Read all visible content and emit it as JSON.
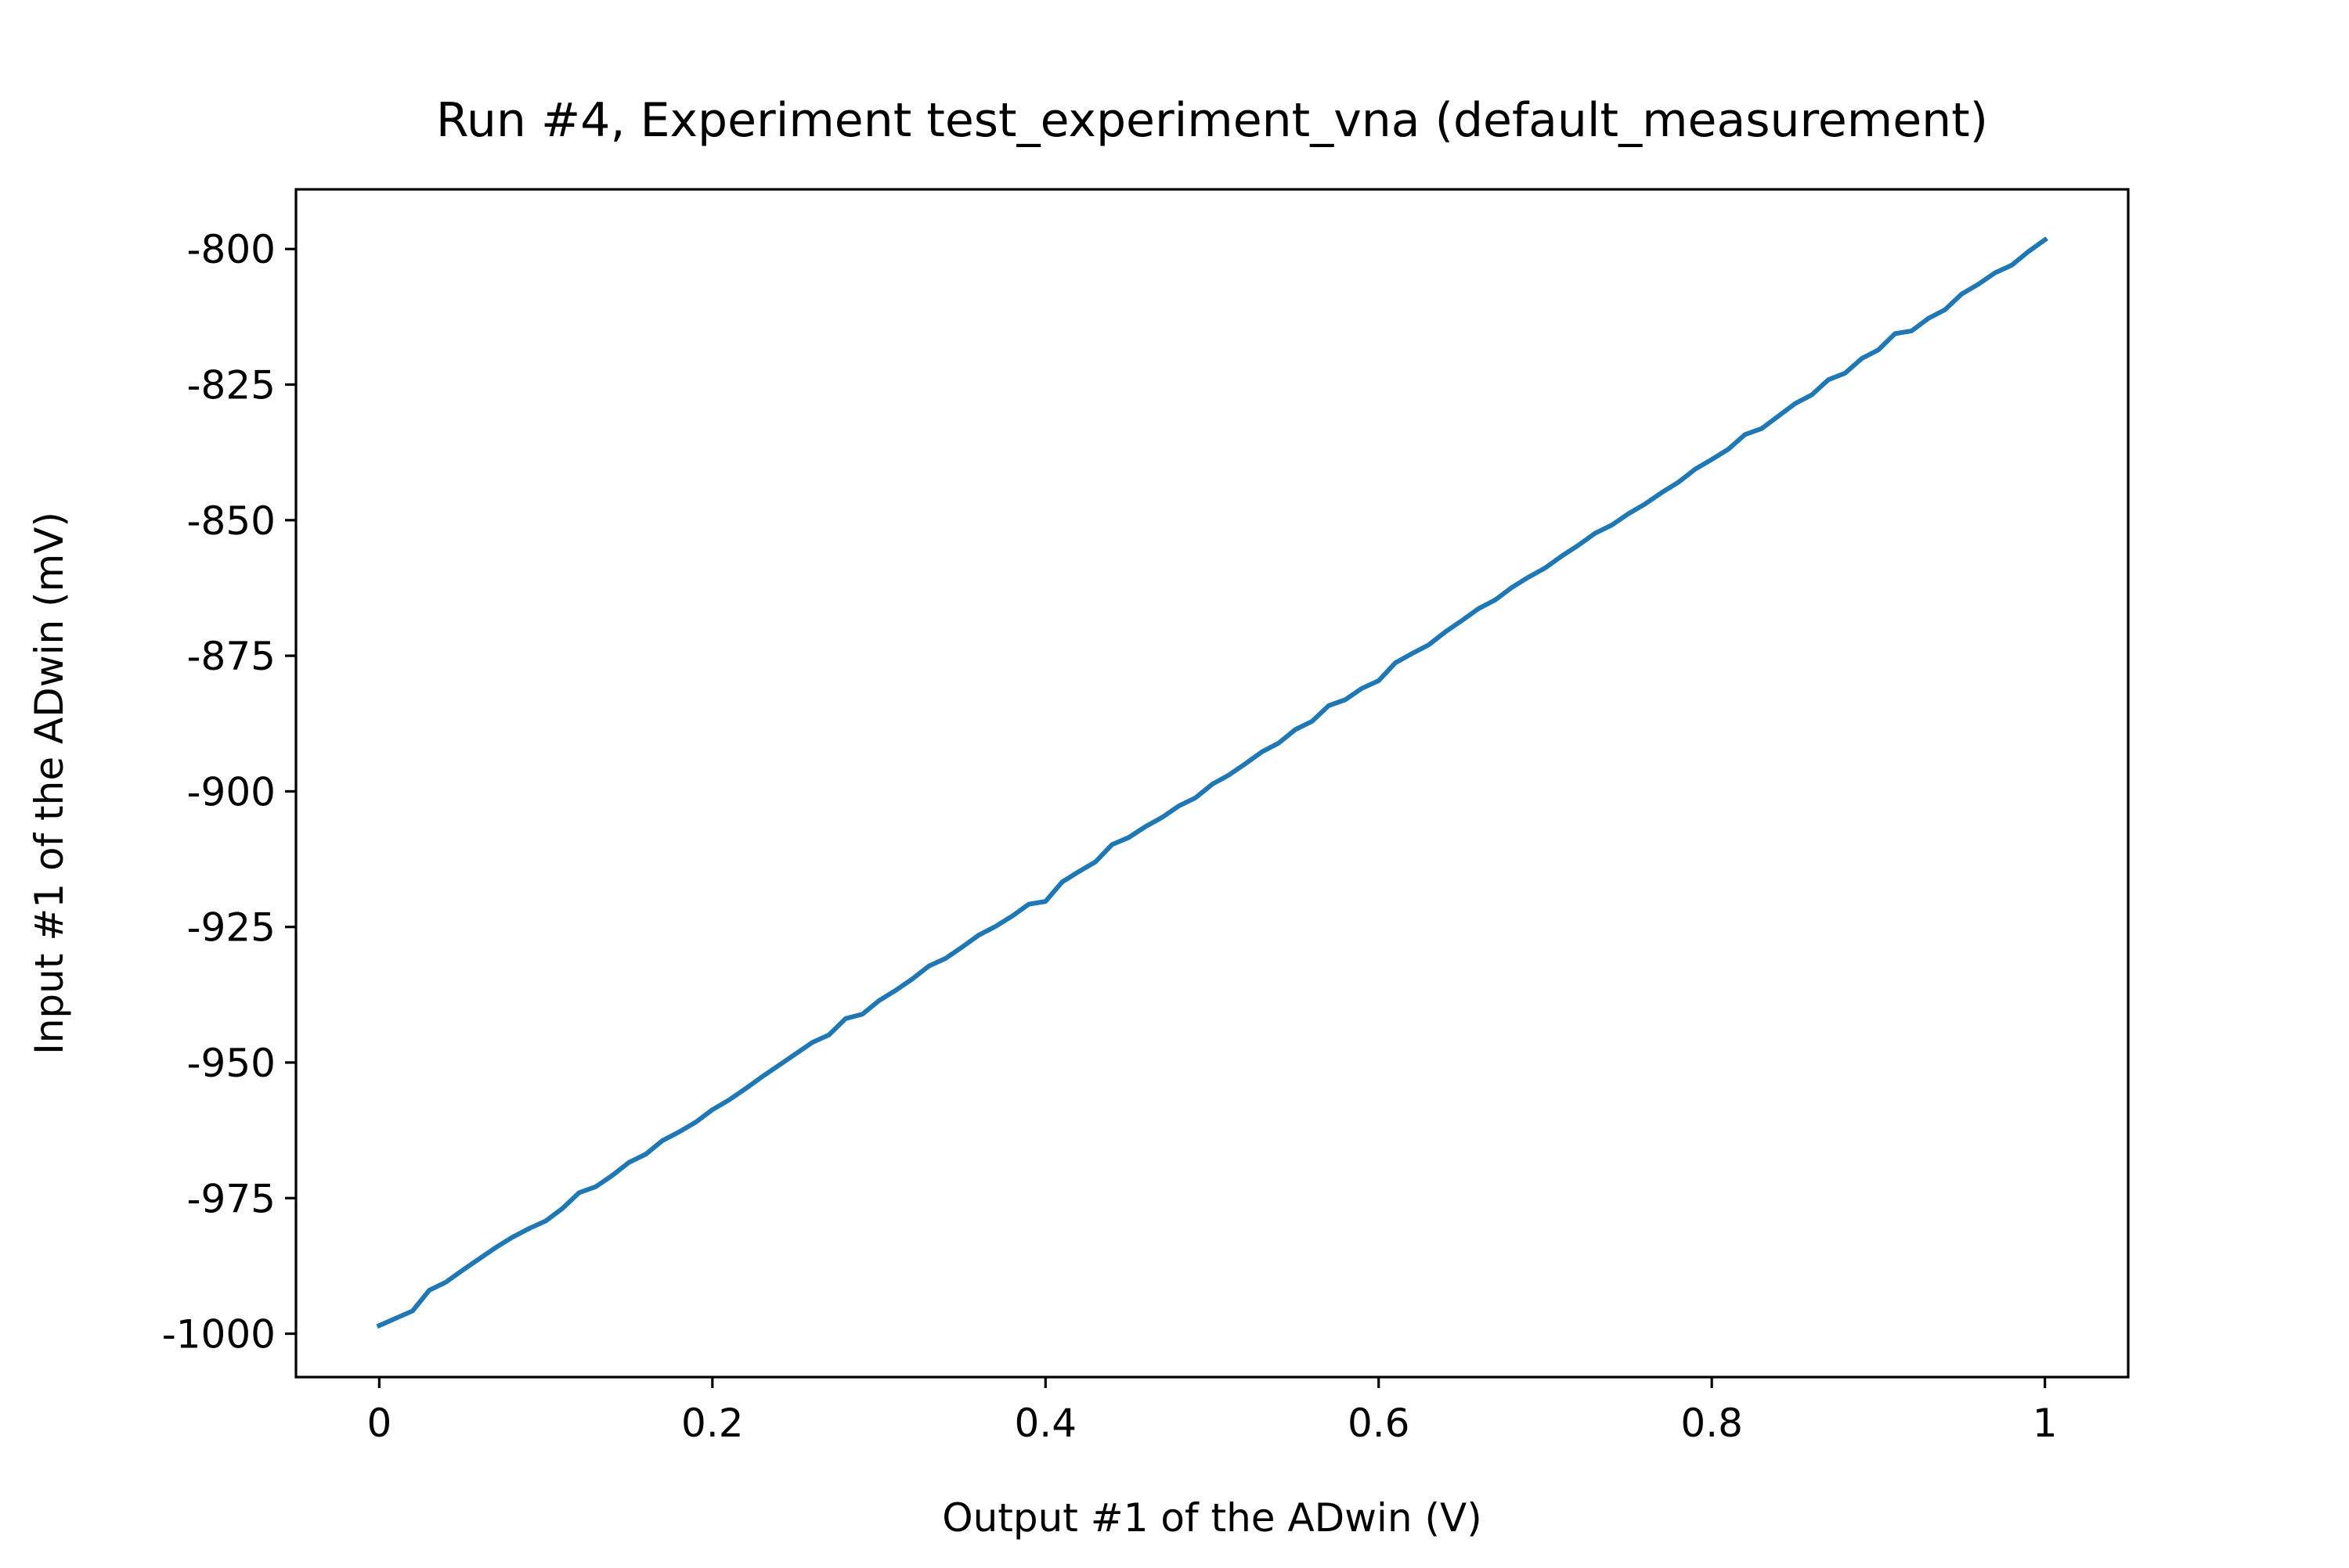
{
  "chart_data": {
    "type": "line",
    "title": "Run #4, Experiment test_experiment_vna (default_measurement)",
    "xlabel": "Output #1 of the ADwin (V)",
    "ylabel": "Input #1 of the ADwin (mV)",
    "xlim": [
      -0.05,
      1.05
    ],
    "ylim": [
      -1008,
      -789
    ],
    "x_ticks": [
      0,
      0.2,
      0.4,
      0.6,
      0.8,
      1
    ],
    "x_tick_labels": [
      "0",
      "0.2",
      "0.4",
      "0.6",
      "0.8",
      "1"
    ],
    "y_ticks": [
      -1000,
      -975,
      -950,
      -925,
      -900,
      -875,
      -850,
      -825,
      -800
    ],
    "y_tick_labels": [
      "-1000",
      "-975",
      "-950",
      "-925",
      "-900",
      "-875",
      "-850",
      "-825",
      "-800"
    ],
    "grid": false,
    "series": [
      {
        "color": "#1f77b4",
        "x": [
          0,
          0.02,
          0.03,
          0.04,
          0.05,
          0.06,
          0.07,
          0.08,
          0.09,
          0.1,
          0.11,
          0.12,
          0.13,
          0.14,
          0.15,
          0.16,
          0.17,
          0.18,
          0.19,
          0.2,
          0.21,
          0.22,
          0.23,
          0.24,
          0.25,
          0.26,
          0.27,
          0.28,
          0.29,
          0.3,
          0.31,
          0.32,
          0.33,
          0.34,
          0.35,
          0.36,
          0.37,
          0.38,
          0.39,
          0.4,
          0.41,
          0.42,
          0.43,
          0.44,
          0.45,
          0.46,
          0.47,
          0.48,
          0.49,
          0.5,
          0.51,
          0.52,
          0.53,
          0.54,
          0.55,
          0.56,
          0.57,
          0.58,
          0.59,
          0.6,
          0.61,
          0.62,
          0.63,
          0.64,
          0.65,
          0.66,
          0.67,
          0.68,
          0.69,
          0.7,
          0.71,
          0.72,
          0.73,
          0.74,
          0.75,
          0.76,
          0.77,
          0.78,
          0.79,
          0.8,
          0.81,
          0.82,
          0.83,
          0.84,
          0.85,
          0.86,
          0.87,
          0.88,
          0.89,
          0.9,
          0.91,
          0.92,
          0.93,
          0.94,
          0.95,
          0.96,
          0.97,
          0.98,
          0.99,
          1.0
        ],
        "y": [
          -998.5,
          -995.8,
          -992.0,
          -990.5,
          -988.3,
          -986.2,
          -984.1,
          -982.2,
          -980.6,
          -979.2,
          -976.9,
          -974.0,
          -972.9,
          -970.8,
          -968.4,
          -966.9,
          -964.4,
          -962.8,
          -961.0,
          -958.7,
          -956.9,
          -954.8,
          -952.6,
          -950.5,
          -948.4,
          -946.3,
          -944.9,
          -941.9,
          -941.1,
          -938.6,
          -936.7,
          -934.6,
          -932.2,
          -930.8,
          -928.7,
          -926.5,
          -924.9,
          -923.0,
          -920.8,
          -920.3,
          -916.7,
          -914.8,
          -913.0,
          -909.8,
          -908.5,
          -906.5,
          -904.8,
          -902.7,
          -901.2,
          -898.7,
          -897.0,
          -894.9,
          -892.7,
          -891.1,
          -888.6,
          -887.1,
          -884.2,
          -883.1,
          -881.0,
          -879.6,
          -876.3,
          -874.6,
          -873.0,
          -870.6,
          -868.5,
          -866.3,
          -864.7,
          -862.4,
          -860.5,
          -858.8,
          -856.6,
          -854.6,
          -852.4,
          -850.9,
          -848.8,
          -847.0,
          -844.9,
          -843.0,
          -840.6,
          -838.8,
          -836.9,
          -834.2,
          -833.1,
          -830.8,
          -828.5,
          -826.9,
          -824.1,
          -822.9,
          -820.2,
          -818.6,
          -815.6,
          -815.1,
          -812.8,
          -811.2,
          -808.3,
          -806.5,
          -804.4,
          -803.0,
          -800.5,
          -798.3
        ]
      }
    ]
  }
}
